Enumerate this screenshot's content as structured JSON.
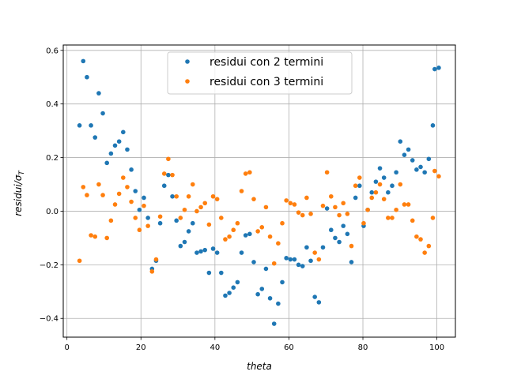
{
  "chart_data": {
    "type": "scatter",
    "xlabel": "theta",
    "ylabel_main": "residui/σ",
    "ylabel_sub": "T",
    "xlim": [
      -1,
      105
    ],
    "ylim": [
      -0.47,
      0.62
    ],
    "xticks": [
      0,
      20,
      40,
      60,
      80,
      100
    ],
    "yticks": [
      -0.4,
      -0.2,
      0.0,
      0.2,
      0.4,
      0.6
    ],
    "xtick_labels": [
      "0",
      "20",
      "40",
      "60",
      "80",
      "100"
    ],
    "ytick_labels": [
      "−0.4",
      "−0.2",
      "0.0",
      "0.2",
      "0.4",
      "0.6"
    ],
    "grid": true,
    "legend_position": "upper-center",
    "series": [
      {
        "name": "residui con 2 termini",
        "color": "#1f77b4",
        "points": [
          [
            3.4,
            0.32
          ],
          [
            4.4,
            0.56
          ],
          [
            5.4,
            0.5
          ],
          [
            6.5,
            0.32
          ],
          [
            7.6,
            0.275
          ],
          [
            8.6,
            0.44
          ],
          [
            9.7,
            0.365
          ],
          [
            10.8,
            0.18
          ],
          [
            11.9,
            0.215
          ],
          [
            13.0,
            0.245
          ],
          [
            14.1,
            0.26
          ],
          [
            15.2,
            0.295
          ],
          [
            16.3,
            0.23
          ],
          [
            17.4,
            0.155
          ],
          [
            18.5,
            0.075
          ],
          [
            19.6,
            0.005
          ],
          [
            20.8,
            0.05
          ],
          [
            21.9,
            -0.025
          ],
          [
            23.0,
            -0.215
          ],
          [
            24.1,
            -0.185
          ],
          [
            25.2,
            -0.045
          ],
          [
            26.3,
            0.095
          ],
          [
            27.4,
            0.135
          ],
          [
            28.5,
            0.055
          ],
          [
            29.6,
            -0.035
          ],
          [
            30.7,
            -0.13
          ],
          [
            31.8,
            -0.115
          ],
          [
            32.9,
            -0.075
          ],
          [
            34.0,
            -0.045
          ],
          [
            35.1,
            -0.155
          ],
          [
            36.2,
            -0.15
          ],
          [
            37.3,
            -0.145
          ],
          [
            38.4,
            -0.23
          ],
          [
            39.5,
            -0.14
          ],
          [
            40.6,
            -0.155
          ],
          [
            41.7,
            -0.23
          ],
          [
            42.8,
            -0.315
          ],
          [
            43.9,
            -0.305
          ],
          [
            45.0,
            -0.285
          ],
          [
            46.1,
            -0.265
          ],
          [
            47.2,
            -0.155
          ],
          [
            48.3,
            -0.09
          ],
          [
            49.4,
            -0.085
          ],
          [
            50.5,
            -0.19
          ],
          [
            51.6,
            -0.31
          ],
          [
            52.7,
            -0.29
          ],
          [
            53.8,
            -0.215
          ],
          [
            54.9,
            -0.325
          ],
          [
            56.0,
            -0.42
          ],
          [
            57.1,
            -0.345
          ],
          [
            58.2,
            -0.265
          ],
          [
            59.3,
            -0.175
          ],
          [
            60.4,
            -0.18
          ],
          [
            61.5,
            -0.18
          ],
          [
            62.6,
            -0.2
          ],
          [
            63.7,
            -0.205
          ],
          [
            64.8,
            -0.135
          ],
          [
            65.9,
            -0.185
          ],
          [
            67.0,
            -0.32
          ],
          [
            68.1,
            -0.34
          ],
          [
            69.2,
            -0.135
          ],
          [
            70.3,
            0.01
          ],
          [
            71.4,
            -0.07
          ],
          [
            72.5,
            -0.1
          ],
          [
            73.6,
            -0.115
          ],
          [
            74.7,
            -0.055
          ],
          [
            75.8,
            -0.085
          ],
          [
            76.9,
            -0.19
          ],
          [
            78.0,
            0.05
          ],
          [
            79.1,
            0.095
          ],
          [
            80.2,
            -0.055
          ],
          [
            81.3,
            0.005
          ],
          [
            82.4,
            0.07
          ],
          [
            83.5,
            0.11
          ],
          [
            84.6,
            0.16
          ],
          [
            85.7,
            0.125
          ],
          [
            86.8,
            0.07
          ],
          [
            87.9,
            0.095
          ],
          [
            89.0,
            0.145
          ],
          [
            90.1,
            0.26
          ],
          [
            91.2,
            0.21
          ],
          [
            92.3,
            0.23
          ],
          [
            93.4,
            0.19
          ],
          [
            94.5,
            0.155
          ],
          [
            95.6,
            0.165
          ],
          [
            96.7,
            0.145
          ],
          [
            97.8,
            0.195
          ],
          [
            98.9,
            0.32
          ],
          [
            99.4,
            0.53
          ],
          [
            100.5,
            0.535
          ]
        ]
      },
      {
        "name": "residui con 3 termini",
        "color": "#ff7f0e",
        "points": [
          [
            3.4,
            -0.185
          ],
          [
            4.4,
            0.09
          ],
          [
            5.4,
            0.06
          ],
          [
            6.5,
            -0.09
          ],
          [
            7.6,
            -0.095
          ],
          [
            8.6,
            0.1
          ],
          [
            9.7,
            0.06
          ],
          [
            10.8,
            -0.1
          ],
          [
            11.9,
            -0.035
          ],
          [
            13.0,
            0.025
          ],
          [
            14.1,
            0.065
          ],
          [
            15.2,
            0.125
          ],
          [
            16.3,
            0.09
          ],
          [
            17.4,
            0.035
          ],
          [
            18.5,
            -0.025
          ],
          [
            19.6,
            -0.07
          ],
          [
            20.8,
            0.02
          ],
          [
            21.9,
            -0.055
          ],
          [
            23.0,
            -0.225
          ],
          [
            24.1,
            -0.18
          ],
          [
            25.2,
            -0.02
          ],
          [
            26.3,
            0.14
          ],
          [
            27.4,
            0.195
          ],
          [
            28.5,
            0.135
          ],
          [
            29.6,
            0.055
          ],
          [
            30.7,
            -0.025
          ],
          [
            31.8,
            0.005
          ],
          [
            32.9,
            0.055
          ],
          [
            34.0,
            0.1
          ],
          [
            35.1,
            0.0
          ],
          [
            36.2,
            0.015
          ],
          [
            37.3,
            0.03
          ],
          [
            38.4,
            -0.05
          ],
          [
            39.5,
            0.055
          ],
          [
            40.6,
            0.045
          ],
          [
            41.7,
            -0.025
          ],
          [
            42.8,
            -0.105
          ],
          [
            43.9,
            -0.095
          ],
          [
            45.0,
            -0.07
          ],
          [
            46.1,
            -0.045
          ],
          [
            47.2,
            0.075
          ],
          [
            48.3,
            0.14
          ],
          [
            49.4,
            0.145
          ],
          [
            50.5,
            0.045
          ],
          [
            51.6,
            -0.075
          ],
          [
            52.7,
            -0.06
          ],
          [
            53.8,
            0.015
          ],
          [
            54.9,
            -0.095
          ],
          [
            56.0,
            -0.195
          ],
          [
            57.1,
            -0.12
          ],
          [
            58.2,
            -0.045
          ],
          [
            59.3,
            0.04
          ],
          [
            60.4,
            0.03
          ],
          [
            61.5,
            0.025
          ],
          [
            62.6,
            -0.005
          ],
          [
            63.7,
            -0.015
          ],
          [
            64.8,
            0.05
          ],
          [
            65.9,
            -0.01
          ],
          [
            67.0,
            -0.155
          ],
          [
            68.1,
            -0.18
          ],
          [
            69.2,
            0.02
          ],
          [
            70.3,
            0.145
          ],
          [
            71.4,
            0.055
          ],
          [
            72.5,
            0.015
          ],
          [
            73.6,
            -0.015
          ],
          [
            74.7,
            0.03
          ],
          [
            75.8,
            -0.01
          ],
          [
            76.9,
            -0.13
          ],
          [
            78.0,
            0.095
          ],
          [
            79.1,
            0.125
          ],
          [
            80.2,
            -0.045
          ],
          [
            81.3,
            0.005
          ],
          [
            82.4,
            0.05
          ],
          [
            83.5,
            0.07
          ],
          [
            84.6,
            0.1
          ],
          [
            85.7,
            0.045
          ],
          [
            86.8,
            -0.025
          ],
          [
            87.9,
            -0.025
          ],
          [
            89.0,
            0.005
          ],
          [
            90.1,
            0.1
          ],
          [
            91.2,
            0.025
          ],
          [
            92.3,
            0.025
          ],
          [
            93.4,
            -0.035
          ],
          [
            94.5,
            -0.095
          ],
          [
            95.6,
            -0.105
          ],
          [
            96.7,
            -0.155
          ],
          [
            97.8,
            -0.13
          ],
          [
            98.9,
            -0.025
          ],
          [
            99.4,
            0.15
          ],
          [
            100.5,
            0.13
          ]
        ]
      }
    ]
  }
}
